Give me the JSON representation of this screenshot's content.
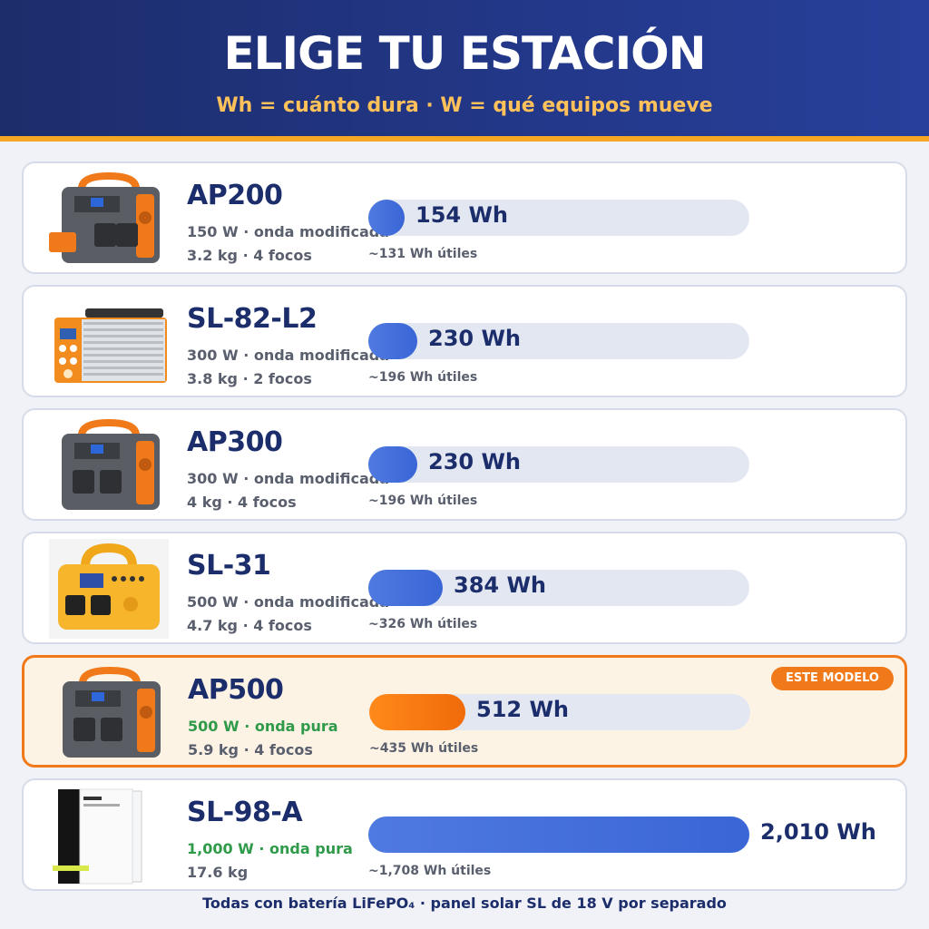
{
  "header": {
    "title": "ELIGE TU ESTACIÓN",
    "subtitle": "Wh = cuánto dura · W = qué equipos mueve"
  },
  "colors": {
    "header_bg": "#1c2d6b",
    "accent_orange": "#f07a1a",
    "subtitle_yellow": "#ffc15a",
    "bar_blue": "#3a66d6",
    "pure_green": "#2f9a4a"
  },
  "products": [
    {
      "name": "AP200",
      "power": "150 W · onda modificada",
      "weight": "3.2 kg · 4 focos",
      "capacity": "154 Wh",
      "capacity_wh": 154,
      "useful": "~131 Wh útiles",
      "style": "ap-small"
    },
    {
      "name": "SL-82-L2",
      "power": "300 W · onda modificada",
      "weight": "3.8 kg · 2 focos",
      "capacity": "230 Wh",
      "capacity_wh": 230,
      "useful": "~196 Wh útiles",
      "style": "sl-case"
    },
    {
      "name": "AP300",
      "power": "300 W · onda modificada",
      "weight": "4 kg · 4 focos",
      "capacity": "230 Wh",
      "capacity_wh": 230,
      "useful": "~196 Wh útiles",
      "style": "ap-gray"
    },
    {
      "name": "SL-31",
      "power": "500 W · onda modificada",
      "weight": "4.7 kg · 4 focos",
      "capacity": "384 Wh",
      "capacity_wh": 384,
      "useful": "~326 Wh útiles",
      "style": "sl-yellow"
    },
    {
      "name": "AP500",
      "power": "500 W · onda pura",
      "weight": "5.9 kg · 4 focos",
      "capacity": "512 Wh",
      "capacity_wh": 512,
      "useful": "~435 Wh útiles",
      "style": "ap-gray",
      "highlight": true,
      "badge": "ESTE MODELO"
    },
    {
      "name": "SL-98-A",
      "power": "1,000 W · onda pura",
      "weight": "17.6 kg",
      "capacity": "2,010 Wh",
      "capacity_wh": 2010,
      "useful": "~1,708 Wh útiles",
      "style": "sl-tower"
    }
  ],
  "scale_max_wh": 2010,
  "footer": "Todas con batería LiFePO₄ · panel solar SL de 18 V por separado"
}
